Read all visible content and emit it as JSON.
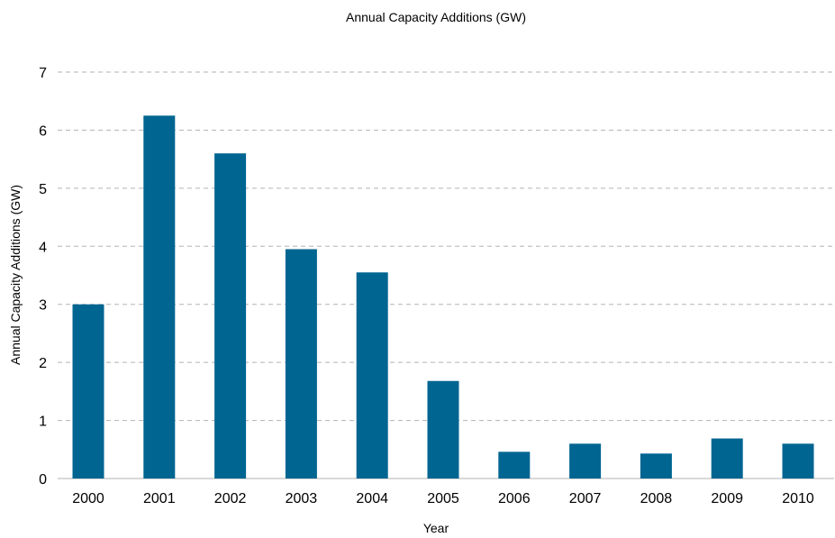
{
  "chart_data": {
    "type": "bar",
    "title": "Annual Capacity Additions (GW)",
    "xlabel": "Year",
    "ylabel": "Annual Capacity Additions (GW)",
    "categories": [
      "2000",
      "2001",
      "2002",
      "2003",
      "2004",
      "2005",
      "2006",
      "2007",
      "2008",
      "2009",
      "2010"
    ],
    "values": [
      3.0,
      6.25,
      5.6,
      3.95,
      3.55,
      1.68,
      0.46,
      0.6,
      0.43,
      0.69,
      0.6
    ],
    "ylim": [
      0,
      7
    ],
    "yticks": [
      "0",
      "1",
      "2",
      "3",
      "4",
      "5",
      "6",
      "7"
    ],
    "grid": true,
    "legend": "none",
    "bar_color": "#006591"
  }
}
